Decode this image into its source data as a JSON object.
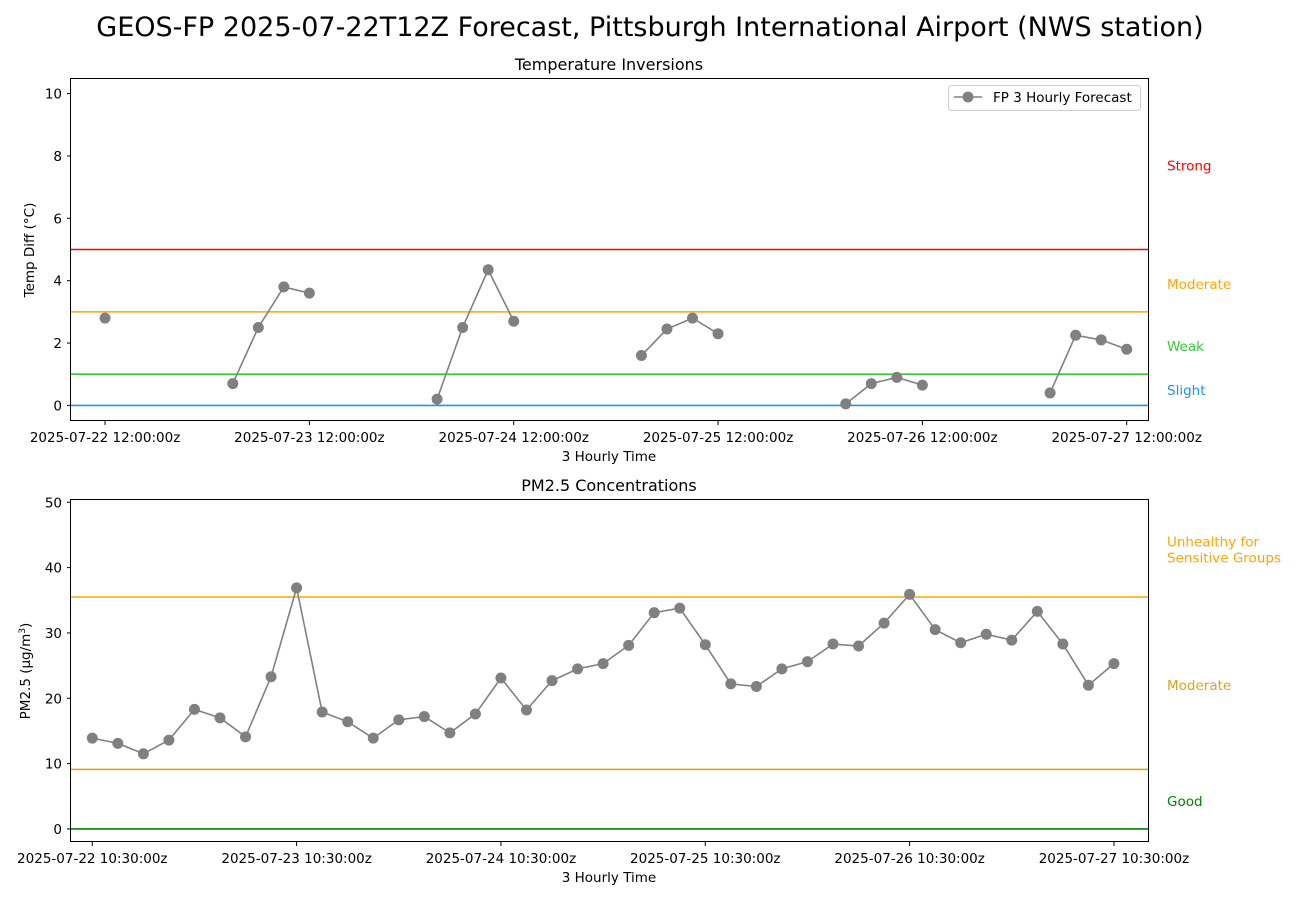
{
  "figure": {
    "title": "GEOS-FP 2025-07-22T12Z Forecast, Pittsburgh International Airport (NWS station)"
  },
  "chart_data": [
    {
      "type": "line",
      "title": "Temperature Inversions",
      "xlabel": "3 Hourly Time",
      "ylabel": "Temp Diff (°C)",
      "ylim": [
        -0.5,
        10.5
      ],
      "yticks": [
        0,
        2,
        4,
        6,
        8,
        10
      ],
      "x_tick_labels": [
        "2025-07-22 12:00:00z",
        "2025-07-23 12:00:00z",
        "2025-07-24 12:00:00z",
        "2025-07-25 12:00:00z",
        "2025-07-26 12:00:00z",
        "2025-07-27 12:00:00z"
      ],
      "legend": {
        "position": "top-right",
        "entries": [
          "FP 3 Hourly Forecast"
        ]
      },
      "grid": false,
      "series": [
        {
          "name": "FP 3 Hourly Forecast",
          "color": "#808080",
          "segments": [
            {
              "x": [
                "2025-07-22 12:00"
              ],
              "y": [
                2.8
              ]
            },
            {
              "x": [
                "2025-07-23 03:00",
                "2025-07-23 06:00",
                "2025-07-23 09:00",
                "2025-07-23 12:00"
              ],
              "y": [
                0.7,
                2.5,
                3.8,
                3.6
              ]
            },
            {
              "x": [
                "2025-07-24 03:00",
                "2025-07-24 06:00",
                "2025-07-24 09:00",
                "2025-07-24 12:00"
              ],
              "y": [
                0.2,
                2.5,
                4.35,
                2.7
              ]
            },
            {
              "x": [
                "2025-07-25 03:00",
                "2025-07-25 06:00",
                "2025-07-25 09:00",
                "2025-07-25 12:00"
              ],
              "y": [
                1.6,
                2.45,
                2.8,
                2.3
              ]
            },
            {
              "x": [
                "2025-07-26 03:00",
                "2025-07-26 06:00",
                "2025-07-26 09:00",
                "2025-07-26 12:00"
              ],
              "y": [
                0.05,
                0.7,
                0.9,
                0.65
              ]
            },
            {
              "x": [
                "2025-07-27 03:00",
                "2025-07-27 06:00",
                "2025-07-27 09:00",
                "2025-07-27 12:00"
              ],
              "y": [
                0.4,
                2.25,
                2.1,
                1.8
              ]
            }
          ]
        }
      ],
      "thresholds": [
        {
          "value": 0,
          "color": "#1e90ff"
        },
        {
          "value": 1,
          "color": "#32cd32"
        },
        {
          "value": 3,
          "color": "#ffa500"
        },
        {
          "value": 5,
          "color": "#ff0000"
        }
      ],
      "category_labels": [
        {
          "text": "Strong",
          "color": "#ff0000",
          "value": 7.7
        },
        {
          "text": "Moderate",
          "color": "#ffa500",
          "value": 3.9
        },
        {
          "text": "Weak",
          "color": "#32cd32",
          "value": 1.9
        },
        {
          "text": "Slight",
          "color": "#1e90ff",
          "value": 0.5
        }
      ]
    },
    {
      "type": "line",
      "title": "PM2.5 Concentrations",
      "xlabel": "3 Hourly Time",
      "ylabel": "PM2.5 (µg/m3)",
      "ylim": [
        -2,
        50.5
      ],
      "yticks": [
        0,
        10,
        20,
        30,
        40,
        50
      ],
      "x_tick_labels": [
        "2025-07-22 10:30:00z",
        "2025-07-23 10:30:00z",
        "2025-07-24 10:30:00z",
        "2025-07-25 10:30:00z",
        "2025-07-26 10:30:00z",
        "2025-07-27 10:30:00z"
      ],
      "x_start": "2025-07-22 10:30",
      "x_step_hours": 3,
      "grid": false,
      "series": [
        {
          "color": "#808080",
          "values": [
            13.9,
            13.1,
            11.5,
            13.6,
            18.3,
            17.0,
            14.1,
            23.3,
            36.9,
            17.9,
            16.4,
            13.9,
            16.7,
            17.2,
            14.7,
            17.6,
            23.1,
            18.2,
            22.7,
            24.5,
            25.3,
            28.1,
            33.1,
            33.8,
            28.2,
            22.2,
            21.8,
            24.5,
            25.6,
            28.3,
            28.0,
            31.5,
            35.9,
            30.5,
            28.5,
            29.8,
            28.9,
            33.3,
            28.3,
            22.0,
            25.3
          ]
        }
      ],
      "thresholds": [
        {
          "value": 0,
          "color": "#008000"
        },
        {
          "value": 9.1,
          "color": "#daa520"
        },
        {
          "value": 35.5,
          "color": "#ffa500"
        }
      ],
      "category_labels": [
        {
          "lines": [
            "Unhealthy for",
            "Sensitive Groups"
          ],
          "color": "#ffa500",
          "value": 44.0
        },
        {
          "lines": [
            "Moderate"
          ],
          "color": "#daa520",
          "value": 22.0
        },
        {
          "lines": [
            "Good"
          ],
          "color": "#008000",
          "value": 4.3
        }
      ]
    }
  ]
}
